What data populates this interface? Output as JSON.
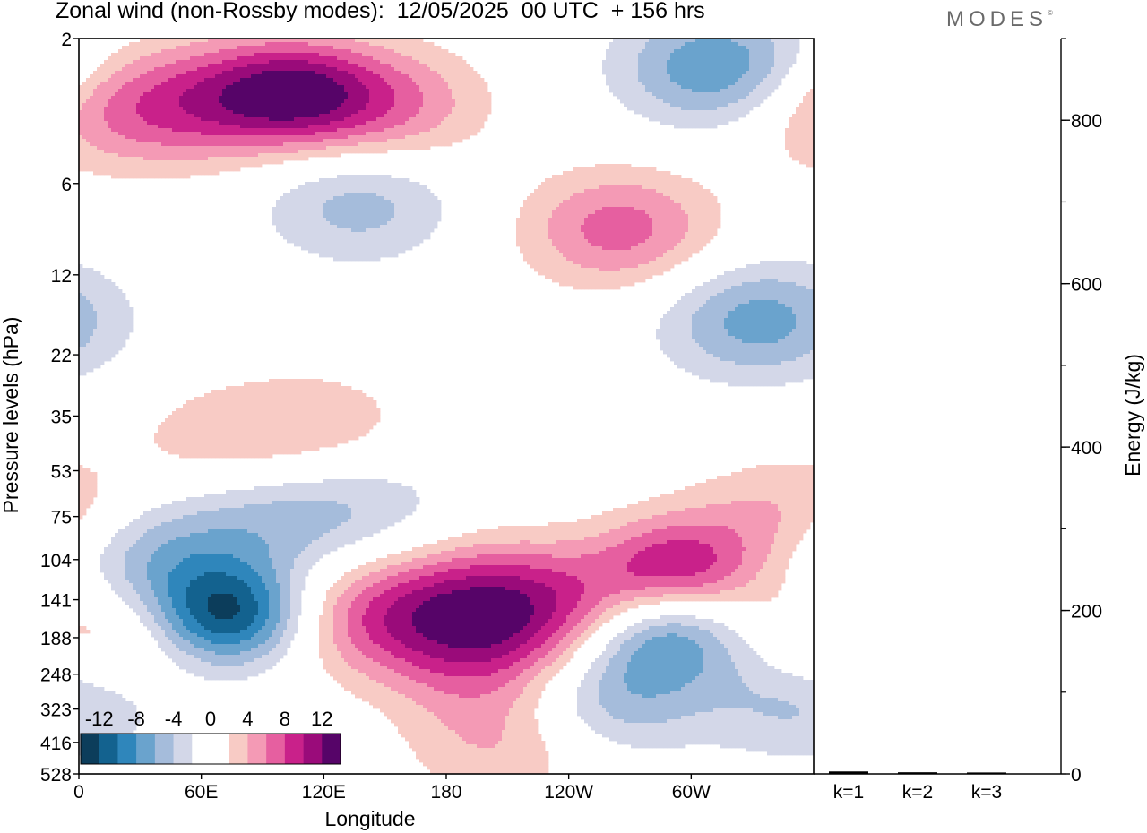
{
  "header": {
    "title": "Zonal wind (non-Rossby modes):  12/05/2025  00 UTC  + 156 hrs",
    "logo": "MODES"
  },
  "colors": {
    "blues": [
      "#0c3d5b",
      "#13628f",
      "#2f86bb",
      "#6aa3cd",
      "#a5bcdb",
      "#d3d7e8"
    ],
    "reds": [
      "#f8cbc5",
      "#f49ab5",
      "#e65fa0",
      "#c9218a",
      "#9a0b7a",
      "#560468"
    ]
  },
  "chart_data": [
    {
      "type": "heatmap",
      "title": "Zonal wind (non-Rossby modes):  12/05/2025  00 UTC  + 156 hrs",
      "xlabel": "Longitude",
      "ylabel": "Pressure levels (hPa)",
      "x_ticks": [
        "0",
        "60E",
        "120E",
        "180",
        "120W",
        "60W"
      ],
      "x_tick_degrees": [
        0,
        60,
        120,
        180,
        240,
        300
      ],
      "xlim": [
        0,
        360
      ],
      "y_ticks": [
        "2",
        "6",
        "12",
        "22",
        "35",
        "53",
        "75",
        "104",
        "141",
        "188",
        "248",
        "323",
        "416",
        "528"
      ],
      "y_scale": "log",
      "ylim": [
        528,
        2
      ],
      "colorbar": {
        "labels": [
          "-12",
          "-8",
          "-4",
          "0",
          "4",
          "8",
          "12"
        ],
        "levels": [
          -12,
          -10,
          -8,
          -6,
          -4,
          -2,
          2,
          4,
          6,
          8,
          10,
          12
        ]
      },
      "features": [
        {
          "lon": 73,
          "p": 158,
          "value": -13
        },
        {
          "lon": 285,
          "p": 178,
          "value": -10
        },
        {
          "lon": 258,
          "p": 290,
          "value": -6
        },
        {
          "lon": 30,
          "p": 99,
          "value": -6
        },
        {
          "lon": 94,
          "p": 77,
          "value": -4
        },
        {
          "lon": 143,
          "p": 69,
          "value": -3
        },
        {
          "lon": 137,
          "p": 7,
          "value": -5
        },
        {
          "lon": 333,
          "p": 17,
          "value": -7
        },
        {
          "lon": 313,
          "p": 2.5,
          "value": -8
        },
        {
          "lon": 209,
          "p": 138,
          "value": 7
        },
        {
          "lon": 202,
          "p": 230,
          "value": 5
        },
        {
          "lon": 177,
          "p": 160,
          "value": 5
        },
        {
          "lon": 136,
          "p": 160,
          "value": 5
        },
        {
          "lon": 259,
          "p": 160,
          "value": 5
        },
        {
          "lon": 293,
          "p": 111,
          "value": 9
        },
        {
          "lon": 350,
          "p": 76,
          "value": 5
        },
        {
          "lon": 15,
          "p": 190,
          "value": 5
        },
        {
          "lon": 265,
          "p": 8.5,
          "value": 7
        },
        {
          "lon": 107,
          "p": 3,
          "value": 9
        },
        {
          "lon": 66,
          "p": 3.2,
          "value": 7
        },
        {
          "lon": 14,
          "p": 3.5,
          "value": 5
        },
        {
          "lon": 152,
          "p": 3.3,
          "value": 6
        },
        {
          "lon": 122,
          "p": 38,
          "value": 3
        },
        {
          "lon": 70,
          "p": 42,
          "value": 3
        },
        {
          "lon": 208,
          "p": 420,
          "value": 4
        },
        {
          "lon": 355,
          "p": 300,
          "value": -5
        }
      ]
    },
    {
      "type": "bar",
      "ylabel": "Energy (J/kg)",
      "categories": [
        "k=1",
        "k=2",
        "k=3"
      ],
      "values": [
        3,
        2,
        1
      ],
      "ylim": [
        0,
        900
      ],
      "y_ticks": [
        "0",
        "200",
        "400",
        "600",
        "800"
      ]
    }
  ]
}
